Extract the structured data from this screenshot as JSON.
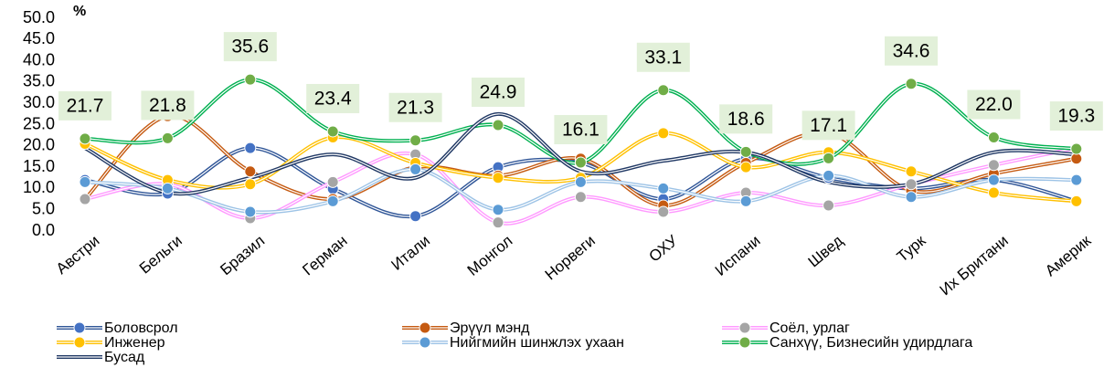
{
  "chart_data": {
    "type": "line",
    "y_label": "%",
    "categories": [
      "Австри",
      "Бельги",
      "Бразил",
      "Герман",
      "Итали",
      "Монгол",
      "Норвеги",
      "ОХУ",
      "Испани",
      "Швед",
      "Турк",
      "Их Британи",
      "Америк"
    ],
    "ylim": [
      0,
      50
    ],
    "yticks": [
      {
        "value": 0,
        "label": "0.0"
      },
      {
        "value": 5,
        "label": "5.0"
      },
      {
        "value": 10,
        "label": "10.0"
      },
      {
        "value": 15,
        "label": "15.0"
      },
      {
        "value": 20,
        "label": "20.0"
      },
      {
        "value": 25,
        "label": "25.0"
      },
      {
        "value": 30,
        "label": "30.0"
      },
      {
        "value": 35,
        "label": "35.0"
      },
      {
        "value": 40,
        "label": "40.0"
      },
      {
        "value": 45,
        "label": "45.0"
      },
      {
        "value": 50,
        "label": "50.0"
      }
    ],
    "smooth": true,
    "series": [
      {
        "name": "Боловсрол",
        "color": "#2f5597",
        "marker_color": "#4472c4",
        "values": [
          12,
          8.8,
          19.5,
          9.9,
          3.5,
          15,
          16,
          7.5,
          17,
          12.5,
          10,
          12,
          7
        ]
      },
      {
        "name": "Эрүүл мэнд",
        "color": "#c55a11",
        "marker_color": "#c55a11",
        "values": [
          7.5,
          27,
          14,
          7.5,
          15,
          13,
          17,
          6,
          16,
          23,
          9.5,
          13.5,
          17
        ]
      },
      {
        "name": "Соёл, урлаг",
        "color": "#ff99ff",
        "marker_color": "#a5a5a5",
        "values": [
          7.5,
          11,
          3,
          11.5,
          18,
          2,
          8,
          4.5,
          9,
          6,
          11,
          15.5,
          19.5
        ]
      },
      {
        "name": "Инженер",
        "color": "#ffc000",
        "marker_color": "#ffc000",
        "values": [
          20.5,
          12,
          11,
          22,
          16,
          12.5,
          12.5,
          23,
          15,
          18.5,
          14,
          9,
          7
        ]
      },
      {
        "name": "Нийгмийн шинжлэх ухаан",
        "color": "#9dc3e6",
        "marker_color": "#5b9bd5",
        "values": [
          11.5,
          10,
          4.5,
          7,
          14.5,
          5,
          11.5,
          10,
          7,
          13,
          8,
          12,
          12
        ]
      },
      {
        "name": "Санхүү, Бизнесийн удирдлага",
        "color": "#00b050",
        "marker_color": "#70ad47",
        "values": [
          21.7,
          21.8,
          35.6,
          23.4,
          21.3,
          24.9,
          16.1,
          33.1,
          18.6,
          17.1,
          34.6,
          22.0,
          19.3
        ],
        "value_labels": [
          "21.7",
          "21.8",
          "35.6",
          "23.4",
          "21.3",
          "24.9",
          "16.1",
          "33.1",
          "18.6",
          "17.1",
          "34.6",
          "22.0",
          "19.3"
        ]
      },
      {
        "name": "Бусад",
        "color": "#203864",
        "marker": false,
        "values": [
          19.5,
          9,
          12.5,
          18,
          12.5,
          27.5,
          14,
          16.5,
          18.5,
          11.5,
          11,
          18.5,
          18
        ]
      }
    ]
  }
}
